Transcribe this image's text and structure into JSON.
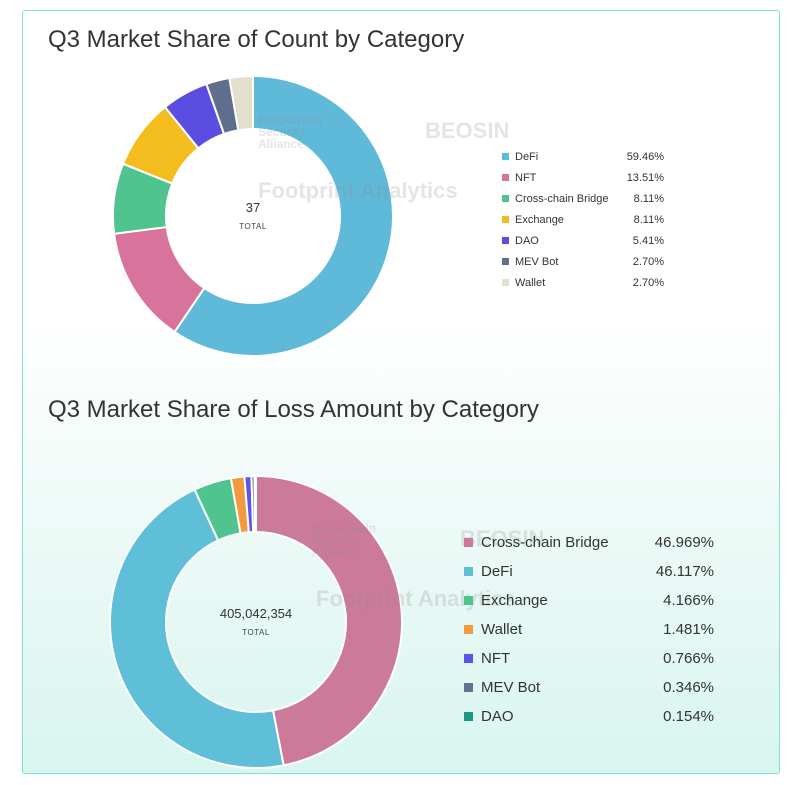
{
  "watermarks": {
    "bsa": "Blockchain Security Alliance",
    "beosin": "BEOSIN",
    "beosin_sub": "Blockchain Security",
    "footprint": "Footprint Analytics"
  },
  "chart_data": [
    {
      "type": "donut",
      "title": "Q3 Market Share of Count by Category",
      "center_value": "37",
      "center_label": "TOTAL",
      "slices": [
        {
          "label": "DeFi",
          "value": 59.46,
          "display": "59.46%",
          "color": "#5fb9d9"
        },
        {
          "label": "NFT",
          "value": 13.51,
          "display": "13.51%",
          "color": "#d8749b"
        },
        {
          "label": "Cross-chain Bridge",
          "value": 8.11,
          "display": "8.11%",
          "color": "#4fc48e"
        },
        {
          "label": "Exchange",
          "value": 8.11,
          "display": "8.11%",
          "color": "#f4bd1f"
        },
        {
          "label": "DAO",
          "value": 5.41,
          "display": "5.41%",
          "color": "#5b4de0"
        },
        {
          "label": "MEV Bot",
          "value": 2.7,
          "display": "2.70%",
          "color": "#5e6e8c"
        },
        {
          "label": "Wallet",
          "value": 2.7,
          "display": "2.70%",
          "color": "#e3dfcf"
        }
      ]
    },
    {
      "type": "donut",
      "title": "Q3 Market Share of Loss Amount by Category",
      "center_value": "405,042,354",
      "center_label": "TOTAL",
      "slices": [
        {
          "label": "Cross-chain Bridge",
          "value": 46.969,
          "display": "46.969%",
          "color": "#cc7a9a"
        },
        {
          "label": "DeFi",
          "value": 46.117,
          "display": "46.117%",
          "color": "#5fbfd8"
        },
        {
          "label": "Exchange",
          "value": 4.166,
          "display": "4.166%",
          "color": "#4fc48e"
        },
        {
          "label": "Wallet",
          "value": 1.481,
          "display": "1.481%",
          "color": "#f29a3d"
        },
        {
          "label": "NFT",
          "value": 0.766,
          "display": "0.766%",
          "color": "#5b54e6"
        },
        {
          "label": "MEV Bot",
          "value": 0.346,
          "display": "0.346%",
          "color": "#5e7590"
        },
        {
          "label": "DAO",
          "value": 0.154,
          "display": "0.154%",
          "color": "#1a9a85"
        }
      ]
    }
  ]
}
